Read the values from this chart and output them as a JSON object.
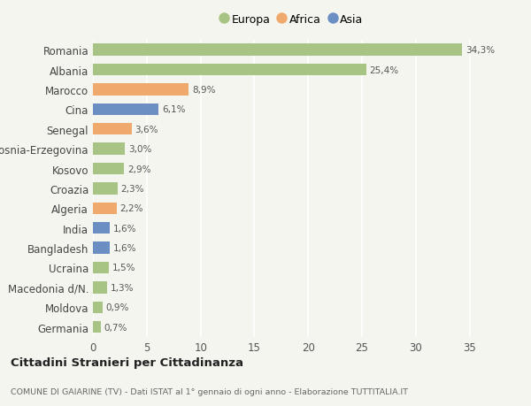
{
  "countries": [
    "Romania",
    "Albania",
    "Marocco",
    "Cina",
    "Senegal",
    "Bosnia-Erzegovina",
    "Kosovo",
    "Croazia",
    "Algeria",
    "India",
    "Bangladesh",
    "Ucraina",
    "Macedonia d/N.",
    "Moldova",
    "Germania"
  ],
  "values": [
    34.3,
    25.4,
    8.9,
    6.1,
    3.6,
    3.0,
    2.9,
    2.3,
    2.2,
    1.6,
    1.6,
    1.5,
    1.3,
    0.9,
    0.7
  ],
  "labels": [
    "34,3%",
    "25,4%",
    "8,9%",
    "6,1%",
    "3,6%",
    "3,0%",
    "2,9%",
    "2,3%",
    "2,2%",
    "1,6%",
    "1,6%",
    "1,5%",
    "1,3%",
    "0,9%",
    "0,7%"
  ],
  "continents": [
    "Europa",
    "Europa",
    "Africa",
    "Asia",
    "Africa",
    "Europa",
    "Europa",
    "Europa",
    "Africa",
    "Asia",
    "Asia",
    "Europa",
    "Europa",
    "Europa",
    "Europa"
  ],
  "colors": {
    "Europa": "#a8c484",
    "Africa": "#f0a96c",
    "Asia": "#6b8fc2"
  },
  "background_color": "#f5f5f0",
  "title_main": "Cittadini Stranieri per Cittadinanza",
  "title_sub": "COMUNE DI GAIARINE (TV) - Dati ISTAT al 1° gennaio di ogni anno - Elaborazione TUTTITALIA.IT",
  "xlabel_ticks": [
    0,
    5,
    10,
    15,
    20,
    25,
    30,
    35
  ],
  "xlim": [
    0,
    37
  ]
}
